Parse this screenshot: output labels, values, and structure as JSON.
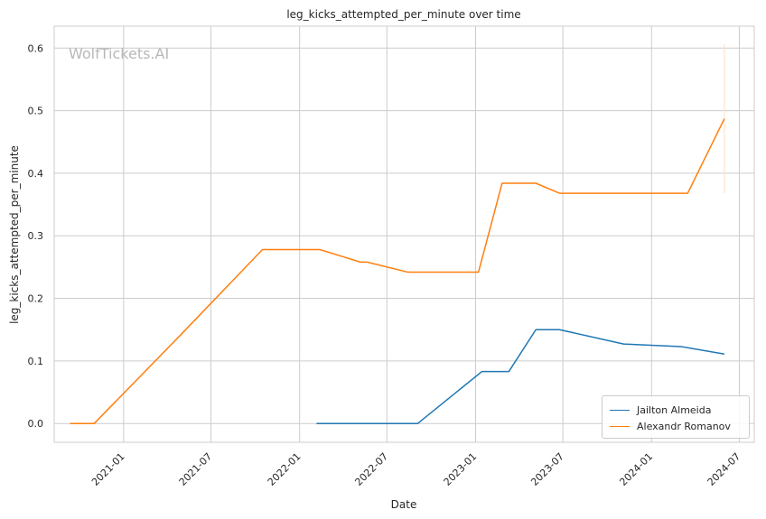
{
  "chart_data": {
    "type": "line",
    "title": "leg_kicks_attempted_per_minute over time",
    "xlabel": "Date",
    "ylabel": "leg_kicks_attempted_per_minute",
    "watermark": "WolfTickets.AI",
    "grid": true,
    "legend_position": "bottom-right",
    "x_tick_labels": [
      "2021-01",
      "2021-07",
      "2022-01",
      "2022-07",
      "2023-01",
      "2023-07",
      "2024-01",
      "2024-07"
    ],
    "y_tick_labels": [
      "0.0",
      "0.1",
      "0.2",
      "0.3",
      "0.4",
      "0.5",
      "0.6"
    ],
    "ylim": [
      -0.03,
      0.635
    ],
    "xlim": [
      "2020-08-10",
      "2024-08-01"
    ],
    "series": [
      {
        "name": "Jailton Almeida",
        "color": "#1f77b4",
        "points": [
          [
            "2022-02-05",
            0.0
          ],
          [
            "2022-09-03",
            0.0
          ],
          [
            "2023-01-14",
            0.083
          ],
          [
            "2023-03-11",
            0.083
          ],
          [
            "2023-05-06",
            0.15
          ],
          [
            "2023-06-24",
            0.15
          ],
          [
            "2023-11-04",
            0.127
          ],
          [
            "2024-03-02",
            0.123
          ],
          [
            "2024-05-31",
            0.111
          ]
        ]
      },
      {
        "name": "Alexandr Romanov",
        "color": "#ff7f0e",
        "points": [
          [
            "2020-09-12",
            0.0
          ],
          [
            "2020-11-01",
            0.0
          ],
          [
            "2021-05-01",
            0.143
          ],
          [
            "2021-10-16",
            0.278
          ],
          [
            "2022-02-12",
            0.278
          ],
          [
            "2022-05-07",
            0.258
          ],
          [
            "2022-05-21",
            0.258
          ],
          [
            "2022-08-13",
            0.242
          ],
          [
            "2023-01-07",
            0.242
          ],
          [
            "2023-02-25",
            0.384
          ],
          [
            "2023-05-06",
            0.384
          ],
          [
            "2023-06-24",
            0.368
          ],
          [
            "2024-03-16",
            0.368
          ],
          [
            "2024-05-31",
            0.487
          ]
        ]
      }
    ],
    "error_bar": {
      "series": "Alexandr Romanov",
      "x": "2024-05-31",
      "low": 0.368,
      "high": 0.606
    }
  }
}
